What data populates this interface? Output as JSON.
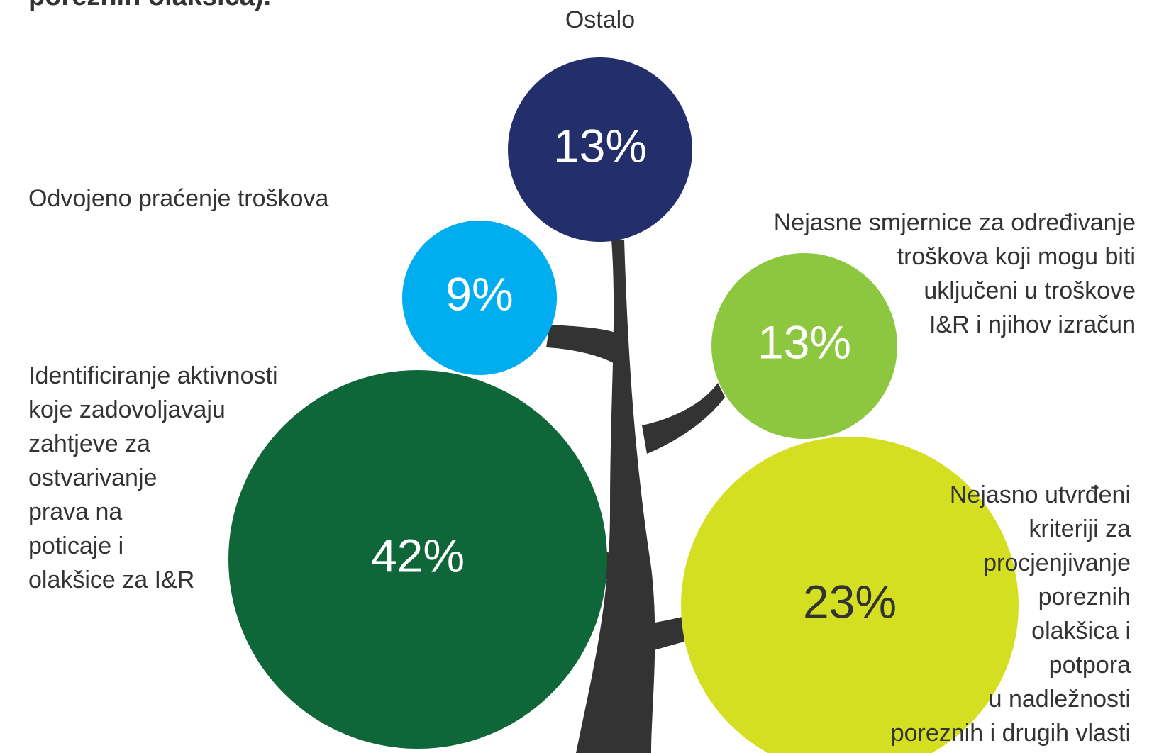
{
  "chart_data": {
    "type": "bubble",
    "title": "poreznih olakšica).",
    "categories": [
      "Ostalo",
      "Odvojeno praćenje troškova",
      "Nejasne smjernice za određivanje\ntroškova koji mogu biti\nuključeni u troškove\nI&R i njihov izračun",
      "Identificiranje aktivnosti\nkoje zadovoljavaju\nzahtjeve za\nostvarivanje\nprava na\npoticaje i\nolakšice za I&R",
      "Nejasno utvrđeni\nkriteriji za\nprocjenjivanje\nporeznih\nolakšica i\npotpora\nu nadležnosti\nporeznih i drugih vlasti"
    ],
    "values": [
      13,
      9,
      13,
      42,
      23
    ],
    "value_labels": [
      "13%",
      "9%",
      "13%",
      "42%",
      "23%"
    ],
    "colors": [
      "#232f6a",
      "#00adef",
      "#8dc63f",
      "#0f6638",
      "#d4df22"
    ]
  }
}
